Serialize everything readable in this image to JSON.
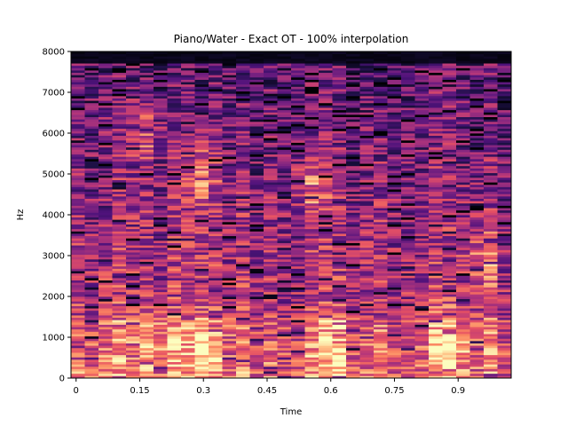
{
  "chart_data": {
    "type": "heatmap",
    "title": "Piano/Water - Exact OT - 100% interpolation",
    "xlabel": "Time",
    "ylabel": "Hz",
    "xlim": [
      -0.012,
      1.025
    ],
    "ylim": [
      0,
      8000
    ],
    "x_ticks": [
      0,
      0.15,
      0.3,
      0.45,
      0.6,
      0.75,
      0.9
    ],
    "x_tick_labels": [
      "0",
      "0.15",
      "0.3",
      "0.45",
      "0.6",
      "0.75",
      "0.9"
    ],
    "y_ticks": [
      0,
      1000,
      2000,
      3000,
      4000,
      5000,
      6000,
      7000,
      8000
    ],
    "y_tick_labels": [
      "0",
      "1000",
      "2000",
      "3000",
      "4000",
      "5000",
      "6000",
      "7000",
      "8000"
    ],
    "colormap": [
      "#000004",
      "#1c1044",
      "#4f127b",
      "#812581",
      "#b5367a",
      "#e55064",
      "#fb8761",
      "#fec287",
      "#fcfdbf"
    ],
    "grid": false,
    "legend": "none",
    "n_time_frames": 32,
    "n_freq_bins": 140,
    "intensity_profile": {
      "low_band_hz": 1500,
      "max_frequency_hz": 7700,
      "bright_regions": [
        {
          "t": 0.19,
          "hz": 900
        },
        {
          "t": 0.3,
          "hz": 800
        },
        {
          "t": 0.6,
          "hz": 700
        },
        {
          "t": 0.88,
          "hz": 800
        },
        {
          "t": 0.3,
          "hz": 5000
        },
        {
          "t": 0.55,
          "hz": 4700
        },
        {
          "t": 0.17,
          "hz": 6000
        },
        {
          "t": 0.96,
          "hz": 2900
        }
      ]
    }
  }
}
